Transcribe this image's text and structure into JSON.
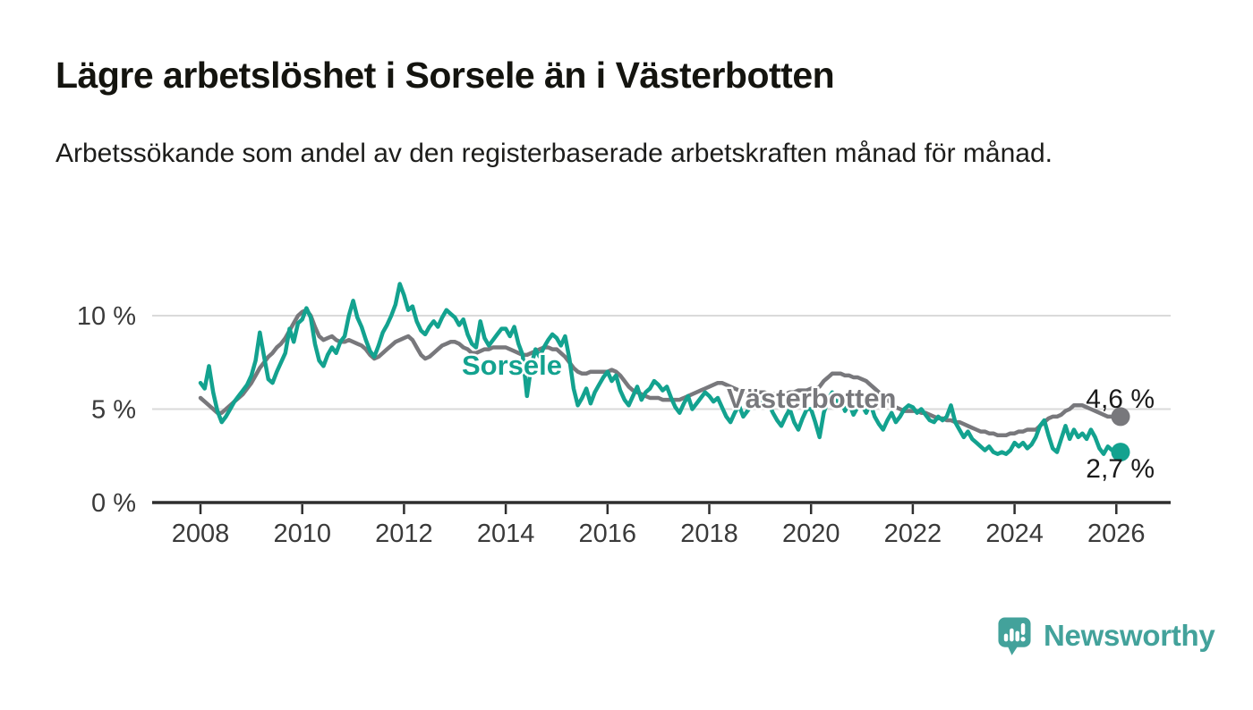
{
  "header": {
    "title": "Lägre arbetslöshet i Sorsele än i Västerbotten",
    "subtitle": "Arbetssökande som andel av den registerbaserade arbetskraften månad för månad."
  },
  "branding": {
    "name": "Newsworthy",
    "icon": "newsworthy-pin-barchart-icon",
    "color": "#43a29b"
  },
  "chart_data": {
    "type": "line",
    "frequency": "monthly",
    "x_start": "2008-01",
    "x_end": "2026-02",
    "x_ticks": [
      2008,
      2010,
      2012,
      2014,
      2016,
      2018,
      2020,
      2022,
      2024,
      2026
    ],
    "y_ticks": [
      {
        "value": 0,
        "label": "0 %"
      },
      {
        "value": 5,
        "label": "5 %"
      },
      {
        "value": 10,
        "label": "10 %"
      }
    ],
    "gridline_values": [
      5,
      10
    ],
    "ylim": [
      0,
      12.4
    ],
    "grid": "horizontal-only",
    "legend_position": "inline-labels",
    "colors": {
      "sorsele": "#13a28f",
      "vasterbotten": "#78787c",
      "axis": "#2e2e2e",
      "gridline": "#dadada",
      "tick_text": "#3a3a3a",
      "annotation_text": "#1a1a1a"
    },
    "series": [
      {
        "name": "Sorsele",
        "color": "#13a28f",
        "end_label": "2,7 %",
        "values": [
          6.4,
          6.1,
          7.3,
          5.9,
          4.9,
          4.3,
          4.6,
          5.0,
          5.4,
          5.7,
          6.0,
          6.3,
          6.8,
          7.6,
          9.1,
          7.8,
          6.6,
          6.4,
          7.0,
          7.5,
          8.0,
          9.3,
          8.6,
          9.6,
          9.8,
          10.4,
          9.9,
          8.5,
          7.6,
          7.3,
          7.9,
          8.3,
          8.0,
          8.6,
          8.9,
          10.0,
          10.8,
          9.9,
          9.4,
          8.7,
          8.1,
          7.8,
          8.4,
          9.1,
          9.5,
          10.0,
          10.6,
          11.7,
          11.1,
          10.3,
          10.5,
          9.7,
          9.2,
          9.0,
          9.4,
          9.7,
          9.4,
          9.9,
          10.3,
          10.1,
          9.9,
          9.5,
          9.8,
          9.0,
          8.5,
          8.3,
          9.7,
          8.8,
          8.4,
          8.7,
          9.0,
          9.3,
          9.3,
          8.9,
          9.4,
          8.5,
          7.9,
          5.7,
          7.3,
          8.2,
          7.8,
          8.3,
          8.7,
          9.0,
          8.8,
          8.4,
          8.9,
          7.7,
          6.1,
          5.2,
          5.6,
          6.1,
          5.3,
          5.9,
          6.3,
          6.7,
          7.0,
          6.5,
          6.8,
          6.0,
          5.5,
          5.2,
          5.7,
          6.2,
          5.5,
          5.9,
          6.1,
          6.5,
          6.3,
          6.0,
          6.2,
          5.6,
          5.1,
          4.8,
          5.3,
          5.7,
          5.0,
          5.3,
          5.6,
          5.9,
          5.7,
          5.4,
          5.6,
          5.1,
          4.6,
          4.3,
          4.8,
          5.2,
          4.6,
          4.9,
          5.2,
          5.5,
          5.4,
          5.1,
          5.3,
          4.8,
          4.4,
          4.1,
          4.6,
          5.0,
          4.3,
          3.9,
          4.5,
          5.0,
          5.0,
          4.3,
          3.5,
          4.8,
          5.5,
          5.9,
          5.3,
          5.6,
          4.9,
          5.3,
          4.7,
          5.1,
          5.2,
          4.8,
          5.3,
          4.6,
          4.2,
          3.9,
          4.4,
          4.8,
          4.3,
          4.6,
          5.0,
          5.2,
          5.1,
          4.8,
          5.0,
          4.7,
          4.4,
          4.3,
          4.6,
          4.4,
          4.6,
          5.2,
          4.3,
          3.9,
          3.5,
          3.8,
          3.4,
          3.2,
          3.0,
          2.8,
          3.0,
          2.7,
          2.6,
          2.7,
          2.6,
          2.8,
          3.2,
          3.0,
          3.2,
          2.9,
          3.1,
          3.5,
          4.1,
          4.4,
          3.6,
          2.9,
          2.7,
          3.4,
          4.1,
          3.4,
          3.9,
          3.5,
          3.7,
          3.4,
          3.9,
          3.5,
          2.9,
          2.6,
          3.0,
          2.8,
          2.8,
          2.7
        ]
      },
      {
        "name": "Västerbotten",
        "color": "#78787c",
        "end_label": "4,6 %",
        "values": [
          5.6,
          5.4,
          5.2,
          5.0,
          4.8,
          4.8,
          5.0,
          5.2,
          5.4,
          5.6,
          5.8,
          6.1,
          6.4,
          6.8,
          7.2,
          7.5,
          7.8,
          8.0,
          8.3,
          8.5,
          8.8,
          9.2,
          9.6,
          10.0,
          10.2,
          10.3,
          10.0,
          9.4,
          8.9,
          8.7,
          8.8,
          8.9,
          8.7,
          8.6,
          8.6,
          8.7,
          8.6,
          8.5,
          8.4,
          8.2,
          7.9,
          7.7,
          7.8,
          8.0,
          8.2,
          8.4,
          8.6,
          8.7,
          8.8,
          8.9,
          8.7,
          8.3,
          7.9,
          7.7,
          7.8,
          8.0,
          8.2,
          8.4,
          8.5,
          8.6,
          8.6,
          8.5,
          8.3,
          8.2,
          8.0,
          8.0,
          8.1,
          8.2,
          8.2,
          8.3,
          8.3,
          8.3,
          8.3,
          8.2,
          8.1,
          8.0,
          7.9,
          7.9,
          8.0,
          8.1,
          8.2,
          8.3,
          8.3,
          8.2,
          8.2,
          8.0,
          7.8,
          7.5,
          7.2,
          7.0,
          6.9,
          6.9,
          7.0,
          7.0,
          7.0,
          7.0,
          7.0,
          7.1,
          7.0,
          6.8,
          6.5,
          6.2,
          6.0,
          5.9,
          5.8,
          5.7,
          5.6,
          5.6,
          5.6,
          5.5,
          5.5,
          5.5,
          5.5,
          5.5,
          5.6,
          5.7,
          5.8,
          5.9,
          6.0,
          6.1,
          6.2,
          6.3,
          6.4,
          6.4,
          6.3,
          6.2,
          6.1,
          6.0,
          6.0,
          5.9,
          5.9,
          5.9,
          5.9,
          5.9,
          5.8,
          5.8,
          5.8,
          5.8,
          5.8,
          5.9,
          5.9,
          6.0,
          6.0,
          6.0,
          6.1,
          6.1,
          6.2,
          6.5,
          6.7,
          6.9,
          6.9,
          6.9,
          6.8,
          6.8,
          6.7,
          6.7,
          6.6,
          6.5,
          6.3,
          6.1,
          5.9,
          5.7,
          5.5,
          5.3,
          5.1,
          5.0,
          4.9,
          4.9,
          4.9,
          4.9,
          4.8,
          4.8,
          4.7,
          4.6,
          4.5,
          4.5,
          4.4,
          4.4,
          4.3,
          4.3,
          4.2,
          4.1,
          4.0,
          3.9,
          3.8,
          3.8,
          3.7,
          3.7,
          3.6,
          3.6,
          3.6,
          3.7,
          3.7,
          3.8,
          3.8,
          3.9,
          3.9,
          3.9,
          4.1,
          4.3,
          4.5,
          4.6,
          4.6,
          4.7,
          4.9,
          5.0,
          5.2,
          5.2,
          5.2,
          5.1,
          5.0,
          4.9,
          4.8,
          4.7,
          4.6,
          4.6,
          4.6,
          4.6
        ]
      }
    ]
  }
}
